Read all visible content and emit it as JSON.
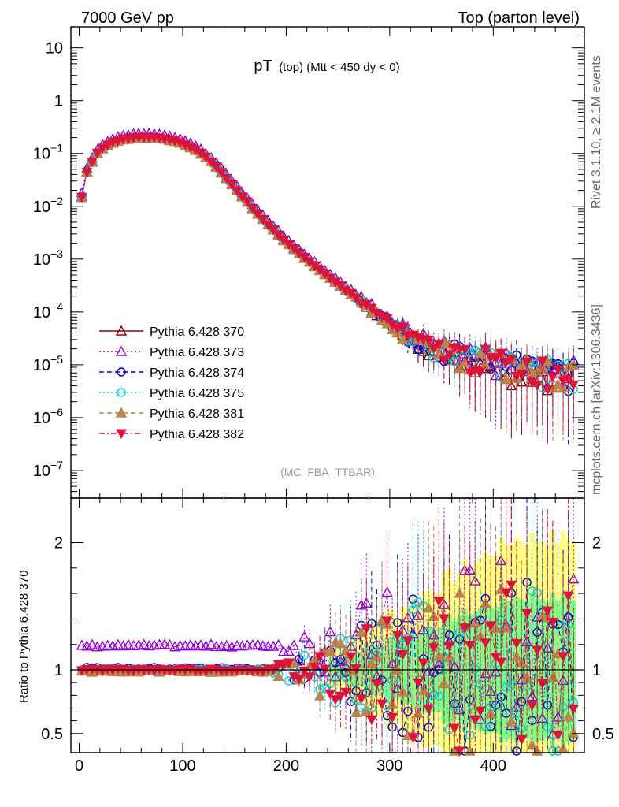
{
  "header": {
    "left": "7000 GeV pp",
    "right": "Top (parton level)"
  },
  "side_labels": {
    "rivet": "Rivet 3.1.10, ≥ 2.1M events",
    "mcplots": "mcplots.cern.ch [arXiv:1306.3436]"
  },
  "chart_data": [
    {
      "type": "line",
      "panel": "main",
      "title": "pT (top) (Mtt < 450 dy < 0)",
      "title_main": "pT",
      "title_sub": "(top) (Mtt < 450 dy < 0)",
      "watermark": "(MC_FBA_TTBAR)",
      "y_scale": "log",
      "xlim": [
        -8,
        488
      ],
      "ylim": [
        3e-08,
        25
      ],
      "x_tick_labels": [
        "0",
        "100",
        "200",
        "300",
        "400"
      ],
      "y_ticks": [
        {
          "value": 10,
          "label": "10"
        },
        {
          "value": 1,
          "label": "1"
        },
        {
          "value": 0.1,
          "base": "10",
          "exp": "−1"
        },
        {
          "value": 0.01,
          "base": "10",
          "exp": "−2"
        },
        {
          "value": 0.001,
          "base": "10",
          "exp": "−3"
        },
        {
          "value": 0.0001,
          "base": "10",
          "exp": "−4"
        },
        {
          "value": 1e-05,
          "base": "10",
          "exp": "−5"
        },
        {
          "value": 1e-06,
          "base": "10",
          "exp": "−6"
        },
        {
          "value": 1e-07,
          "base": "10",
          "exp": "−7"
        }
      ],
      "legend_position": "lower-left",
      "series": [
        {
          "name": "Pythia 6.428 370",
          "color": "#8b0000",
          "marker": "triangle-up-open",
          "line": "solid"
        },
        {
          "name": "Pythia 6.428 373",
          "color": "#9400d3",
          "marker": "triangle-up-open",
          "line": "dotted"
        },
        {
          "name": "Pythia 6.428 374",
          "color": "#0000cd",
          "marker": "circle-open",
          "line": "dashed"
        },
        {
          "name": "Pythia 6.428 375",
          "color": "#00ced1",
          "marker": "circle-open",
          "line": "dotted"
        },
        {
          "name": "Pythia 6.428 381",
          "color": "#b8864b",
          "marker": "triangle-up-filled",
          "line": "dashed"
        },
        {
          "name": "Pythia 6.428 382",
          "color": "#dc143c",
          "marker": "triangle-down-filled",
          "line": "dashdot"
        }
      ],
      "reference_curve": {
        "x": [
          2.5,
          7.5,
          12.5,
          17.5,
          22.5,
          27.5,
          32.5,
          37.5,
          42.5,
          47.5,
          52.5,
          57.5,
          62.5,
          67.5,
          72.5,
          77.5,
          82.5,
          87.5,
          92.5,
          97.5,
          102.5,
          107.5,
          112.5,
          117.5,
          122.5,
          127.5,
          132.5,
          137.5,
          142.5,
          147.5,
          152.5,
          157.5,
          162.5,
          167.5,
          172.5,
          177.5,
          182.5,
          187.5,
          192.5,
          197.5,
          202.5,
          207.5,
          212.5,
          217.5,
          222.5,
          227.5,
          232.5,
          237.5,
          242.5,
          247.5,
          252.5,
          257.5,
          262.5,
          267.5,
          272.5,
          277.5,
          282.5,
          287.5,
          292.5,
          297.5,
          302.5,
          307.5,
          312.5,
          317.5,
          322.5,
          327.5,
          332.5,
          337.5,
          342.5,
          347.5,
          352.5,
          357.5,
          362.5,
          367.5,
          372.5,
          377.5,
          382.5,
          387.5,
          392.5,
          397.5,
          402.5,
          407.5,
          412.5,
          417.5,
          422.5,
          427.5,
          432.5,
          437.5,
          442.5,
          447.5,
          452.5,
          457.5,
          462.5,
          467.5,
          472.5,
          477.5
        ],
        "y": [
          0.015,
          0.045,
          0.07,
          0.1,
          0.125,
          0.145,
          0.16,
          0.175,
          0.185,
          0.192,
          0.198,
          0.2,
          0.2,
          0.2,
          0.198,
          0.194,
          0.188,
          0.18,
          0.17,
          0.158,
          0.146,
          0.132,
          0.117,
          0.1,
          0.085,
          0.07,
          0.056,
          0.044,
          0.034,
          0.026,
          0.02,
          0.0155,
          0.012,
          0.0093,
          0.0073,
          0.0057,
          0.0045,
          0.0036,
          0.0029,
          0.0023,
          0.0019,
          0.00155,
          0.00128,
          0.00106,
          0.00088,
          0.00074,
          0.00062,
          0.00052,
          0.00044,
          0.00037,
          0.00031,
          0.00026,
          0.00022,
          0.000185,
          0.000155,
          0.00013,
          0.000112,
          9.5e-05,
          8e-05,
          6.8e-05,
          5.8e-05,
          4.9e-05,
          4.2e-05,
          3.6e-05,
          3.1e-05,
          2.8e-05,
          2.5e-05,
          2.3e-05,
          2.1e-05,
          2e-05,
          1.9e-05,
          1.8e-05,
          1.7e-05,
          1.6e-05,
          1.5e-05,
          1.4e-05,
          1.35e-05,
          1.3e-05,
          1.25e-05,
          1.2e-05,
          1.15e-05,
          1.1e-05,
          1.05e-05,
          1e-05,
          9.7e-06,
          9.4e-06,
          9.1e-06,
          8.8e-06,
          8.5e-06,
          8.2e-06,
          7.9e-06,
          7.6e-06,
          7.3e-06,
          7e-06,
          6.8e-06,
          6.6e-06
        ]
      },
      "series_scale": [
        1.0,
        1.18,
        1.02,
        1.01,
        0.98,
        1.0
      ]
    },
    {
      "type": "line",
      "panel": "ratio",
      "ylabel": "Ratio to Pythia 6.428 370",
      "xlim": [
        -8,
        488
      ],
      "ylim": [
        0.35,
        2.35
      ],
      "y_tick_labels": [
        "0.5",
        "1",
        "2"
      ],
      "y_tick_values": [
        0.5,
        1,
        2
      ],
      "x_tick_labels": [
        "0",
        "100",
        "200",
        "300",
        "400"
      ],
      "reference_line": 1,
      "band_colors": [
        "#ffff80",
        "#7fff7f"
      ],
      "ratio_levels": [
        1.0,
        1.19,
        1.01,
        1.0,
        0.99,
        1.0
      ],
      "ratio_noise": [
        0.0,
        0.02,
        0.02,
        0.02,
        0.02,
        0.02
      ]
    }
  ]
}
